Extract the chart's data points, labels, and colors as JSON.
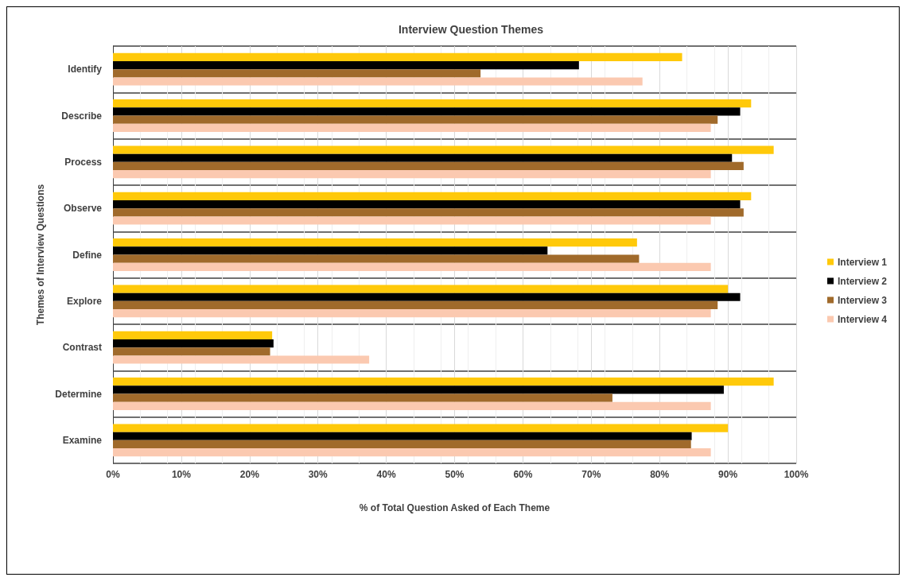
{
  "chart_data": {
    "type": "bar",
    "orientation": "horizontal",
    "title": "Interview Question Themes",
    "xlabel": "% of Total Question Asked of Each Theme",
    "ylabel": "Themes of Interview Questions",
    "categories": [
      "Identify",
      "Describe",
      "Process",
      "Observe",
      "Define",
      "Explore",
      "Contrast",
      "Determine",
      "Examine"
    ],
    "series": [
      {
        "name": "Interview 1",
        "color": "#ffc90a",
        "values": [
          83.3,
          93.4,
          96.7,
          93.4,
          76.7,
          90.0,
          23.3,
          96.7,
          90.0
        ]
      },
      {
        "name": "Interview 2",
        "color": "#000000",
        "values": [
          68.2,
          91.8,
          90.6,
          91.8,
          63.6,
          91.8,
          23.5,
          89.4,
          84.7
        ]
      },
      {
        "name": "Interview 3",
        "color": "#a06a2b",
        "values": [
          53.8,
          88.5,
          92.3,
          92.3,
          77.0,
          88.5,
          23.0,
          73.1,
          84.6
        ]
      },
      {
        "name": "Interview 4",
        "color": "#fbc9b0",
        "values": [
          77.5,
          87.5,
          87.5,
          87.5,
          87.5,
          87.5,
          37.5,
          87.5,
          87.5
        ]
      }
    ],
    "xlim": [
      0,
      100
    ],
    "xticks": [
      {
        "value": 0,
        "label": "0%"
      },
      {
        "value": 10,
        "label": "10%"
      },
      {
        "value": 20,
        "label": "20%"
      },
      {
        "value": 30,
        "label": "30%"
      },
      {
        "value": 40,
        "label": "40%"
      },
      {
        "value": 50,
        "label": "50%"
      },
      {
        "value": 60,
        "label": "60%"
      },
      {
        "value": 70,
        "label": "70%"
      },
      {
        "value": 80,
        "label": "80%"
      },
      {
        "value": 90,
        "label": "90%"
      },
      {
        "value": 100,
        "label": "100%"
      }
    ],
    "grid": true,
    "legend": "right"
  }
}
